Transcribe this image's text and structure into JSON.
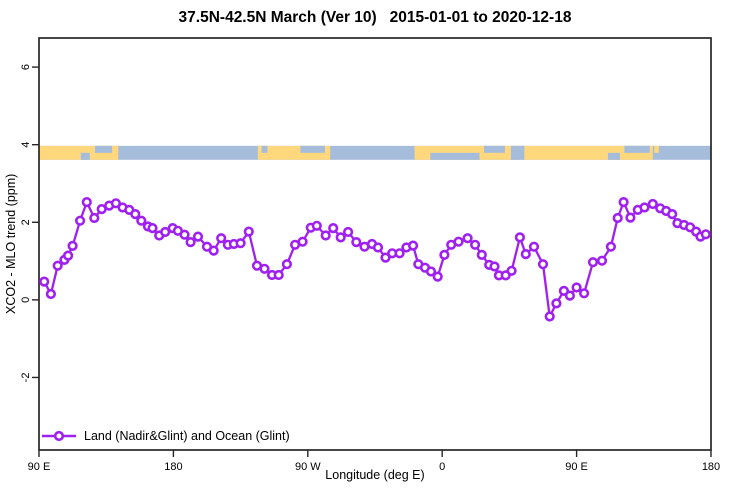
{
  "title": "37.5N-42.5N March (Ver 10)   2015-01-01 to 2020-12-18",
  "legend": {
    "label": "Land (Nadir&Glint) and Ocean (Glint)"
  },
  "colors": {
    "series": "#A020F0",
    "land": "#FFD87E",
    "ocean": "#A6BCDB",
    "axis": "#262626",
    "marker_fill": "#FFFFFF"
  },
  "chart_data": {
    "type": "line",
    "title": "37.5N-42.5N March (Ver 10)   2015-01-01 to 2020-12-18",
    "xlabel": "Longitude (deg E)",
    "ylabel": "XCO2 - MLO trend (ppm)",
    "x_axis_note": "degrees measured eastward from 90E; axis spans 90E -> 180 -> 90W -> 0 -> 90E -> 180",
    "x_range_deg": [
      0,
      450
    ],
    "x_ticks": [
      {
        "pos": 0,
        "label": "90 E"
      },
      {
        "pos": 90,
        "label": "180"
      },
      {
        "pos": 180,
        "label": "90 W"
      },
      {
        "pos": 270,
        "label": "0"
      },
      {
        "pos": 360,
        "label": "90 E"
      },
      {
        "pos": 450,
        "label": "180"
      }
    ],
    "y_ticks": [
      -2,
      0,
      2,
      4,
      6
    ],
    "ylim": [
      -3.87,
      6.75
    ],
    "grid": false,
    "legend_position": "bottom-left-inside",
    "land_ocean_band": {
      "value_top": 3.97,
      "value_bottom": 3.61,
      "land_segments_deg": [
        [
          0,
          53
        ],
        [
          146.5,
          195
        ],
        [
          251.5,
          411
        ]
      ],
      "ocean_patches": [
        {
          "deg": [
            28,
            34
          ],
          "part": "bottom"
        },
        {
          "deg": [
            37.5,
            49
          ],
          "part": "top"
        },
        {
          "deg": [
            149,
            153
          ],
          "part": "top"
        },
        {
          "deg": [
            175,
            191.5
          ],
          "part": "top"
        },
        {
          "deg": [
            262,
            295
          ],
          "part": "bottom"
        },
        {
          "deg": [
            298,
            312
          ],
          "part": "top"
        },
        {
          "deg": [
            316,
            325
          ],
          "part": "full"
        },
        {
          "deg": [
            381,
            389
          ],
          "part": "bottom"
        },
        {
          "deg": [
            392,
            409
          ],
          "part": "top"
        }
      ],
      "land_patches": [
        {
          "deg": [
            50,
            53
          ],
          "part": "full"
        },
        {
          "deg": [
            412,
            415
          ],
          "part": "top"
        }
      ]
    },
    "series": [
      {
        "name": "Land (Nadir&Glint) and Ocean (Glint)",
        "marker": "open-circle",
        "points": [
          [
            3.5,
            0.47
          ],
          [
            8,
            0.15
          ],
          [
            12.5,
            0.88
          ],
          [
            17,
            1.03
          ],
          [
            19.5,
            1.14
          ],
          [
            22.5,
            1.39
          ],
          [
            27.5,
            2.04
          ],
          [
            32,
            2.52
          ],
          [
            37,
            2.11
          ],
          [
            42,
            2.34
          ],
          [
            47,
            2.43
          ],
          [
            51.5,
            2.49
          ],
          [
            56,
            2.38
          ],
          [
            60.5,
            2.32
          ],
          [
            64.5,
            2.21
          ],
          [
            68.5,
            2.04
          ],
          [
            73,
            1.89
          ],
          [
            76,
            1.85
          ],
          [
            80.5,
            1.66
          ],
          [
            84.5,
            1.75
          ],
          [
            89.5,
            1.85
          ],
          [
            93,
            1.78
          ],
          [
            97.5,
            1.68
          ],
          [
            101.5,
            1.49
          ],
          [
            106.5,
            1.63
          ],
          [
            112.5,
            1.37
          ],
          [
            117,
            1.27
          ],
          [
            122,
            1.59
          ],
          [
            126.5,
            1.42
          ],
          [
            130.5,
            1.44
          ],
          [
            135,
            1.46
          ],
          [
            140.5,
            1.76
          ],
          [
            146,
            0.88
          ],
          [
            151,
            0.8
          ],
          [
            156,
            0.64
          ],
          [
            160.5,
            0.64
          ],
          [
            166,
            0.92
          ],
          [
            171.5,
            1.42
          ],
          [
            176.5,
            1.5
          ],
          [
            182,
            1.86
          ],
          [
            186,
            1.91
          ],
          [
            192,
            1.66
          ],
          [
            197,
            1.85
          ],
          [
            202,
            1.61
          ],
          [
            207,
            1.75
          ],
          [
            212.5,
            1.49
          ],
          [
            218,
            1.37
          ],
          [
            223,
            1.44
          ],
          [
            227,
            1.35
          ],
          [
            232,
            1.09
          ],
          [
            236.5,
            1.2
          ],
          [
            241.5,
            1.2
          ],
          [
            246,
            1.35
          ],
          [
            250.5,
            1.4
          ],
          [
            254,
            0.92
          ],
          [
            258.5,
            0.83
          ],
          [
            262.5,
            0.73
          ],
          [
            267,
            0.6
          ],
          [
            271.5,
            1.16
          ],
          [
            276,
            1.42
          ],
          [
            281,
            1.5
          ],
          [
            287,
            1.59
          ],
          [
            292,
            1.42
          ],
          [
            296.5,
            1.16
          ],
          [
            301.5,
            0.9
          ],
          [
            305,
            0.86
          ],
          [
            308,
            0.63
          ],
          [
            312.5,
            0.63
          ],
          [
            316.5,
            0.75
          ],
          [
            322,
            1.61
          ],
          [
            326,
            1.18
          ],
          [
            331.5,
            1.37
          ],
          [
            337.5,
            0.92
          ],
          [
            342,
            -0.43
          ],
          [
            346.5,
            -0.09
          ],
          [
            351.5,
            0.23
          ],
          [
            355.5,
            0.11
          ],
          [
            360,
            0.32
          ],
          [
            365,
            0.17
          ],
          [
            371,
            0.97
          ],
          [
            377,
            1.01
          ],
          [
            383,
            1.37
          ],
          [
            387.5,
            2.11
          ],
          [
            391.5,
            2.52
          ],
          [
            396,
            2.12
          ],
          [
            401,
            2.32
          ],
          [
            405.5,
            2.38
          ],
          [
            411,
            2.47
          ],
          [
            416,
            2.36
          ],
          [
            420,
            2.29
          ],
          [
            424,
            2.21
          ],
          [
            427.5,
            1.98
          ],
          [
            432,
            1.93
          ],
          [
            436,
            1.87
          ],
          [
            440,
            1.76
          ],
          [
            443,
            1.63
          ],
          [
            446.5,
            1.69
          ]
        ]
      }
    ]
  }
}
